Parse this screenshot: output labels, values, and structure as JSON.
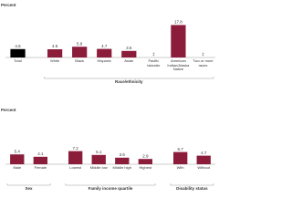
{
  "chart_data": [
    {
      "type": "bar",
      "y_label": "Percent",
      "ylim": [
        0,
        20
      ],
      "groups": [
        {
          "categories": [
            "Total"
          ],
          "values": [
            4.6
          ],
          "value_labels": [
            "4.6"
          ],
          "color": "#000000"
        },
        {
          "label": "Race/ethnicity",
          "categories": [
            "White",
            "Black",
            "Hispanic",
            "Asian",
            "Pacific Islander",
            "American Indian/Alaska Native",
            "Two or more races"
          ],
          "values": [
            4.5,
            5.9,
            4.7,
            3.6,
            null,
            17.8,
            null
          ],
          "value_labels": [
            "4.5",
            "5.9",
            "4.7",
            "3.6",
            "‡",
            "17.8",
            "‡"
          ],
          "color": "#8b1d3b"
        }
      ]
    },
    {
      "type": "bar",
      "y_label": "Percent",
      "ylim": [
        0,
        20
      ],
      "groups": [
        {
          "label": "Sex",
          "categories": [
            "Male",
            "Female"
          ],
          "values": [
            5.4,
            4.1
          ],
          "value_labels": [
            "5.4",
            "4.1"
          ],
          "color": "#8b1d3b"
        },
        {
          "label": "Family income quartile",
          "categories": [
            "Lowest",
            "Middle low",
            "Middle high",
            "Highest"
          ],
          "values": [
            7.2,
            5.1,
            3.6,
            2.9
          ],
          "value_labels": [
            "7.2",
            "5.1",
            "3.6",
            "2.9"
          ],
          "color": "#8b1d3b"
        },
        {
          "label": "Disability status",
          "categories": [
            "With",
            "Without"
          ],
          "values": [
            6.7,
            4.7
          ],
          "value_labels": [
            "6.7",
            "4.7"
          ],
          "color": "#8b1d3b"
        }
      ]
    }
  ]
}
